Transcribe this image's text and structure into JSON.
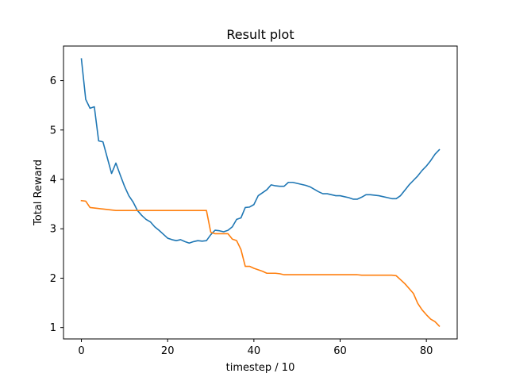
{
  "chart_data": {
    "type": "line",
    "title": "Result plot",
    "xlabel": "timestep / 10",
    "ylabel": "Total Reward",
    "xlim": [
      -4.15,
      87.15
    ],
    "ylim": [
      0.77,
      6.7
    ],
    "x_ticks": [
      0,
      20,
      40,
      60,
      80
    ],
    "y_ticks": [
      1,
      2,
      3,
      4,
      5,
      6
    ],
    "grid": false,
    "series": [
      {
        "color": "#1f77b4",
        "x": [
          0,
          1,
          2,
          3,
          4,
          5,
          6,
          7,
          8,
          9,
          10,
          11,
          12,
          13,
          14,
          15,
          16,
          17,
          18,
          19,
          20,
          21,
          22,
          23,
          24,
          25,
          26,
          27,
          28,
          29,
          30,
          31,
          32,
          33,
          34,
          35,
          36,
          37,
          38,
          39,
          40,
          41,
          42,
          43,
          44,
          45,
          46,
          47,
          48,
          49,
          50,
          51,
          52,
          53,
          54,
          55,
          56,
          57,
          58,
          59,
          60,
          61,
          62,
          63,
          64,
          65,
          66,
          67,
          68,
          69,
          70,
          71,
          72,
          73,
          74,
          75,
          76,
          77,
          78,
          79,
          80,
          81,
          82,
          83
        ],
        "values": [
          6.44,
          5.62,
          5.44,
          5.47,
          4.78,
          4.76,
          4.44,
          4.12,
          4.33,
          4.09,
          3.86,
          3.67,
          3.54,
          3.37,
          3.27,
          3.19,
          3.14,
          3.04,
          2.97,
          2.89,
          2.81,
          2.78,
          2.76,
          2.78,
          2.74,
          2.71,
          2.74,
          2.76,
          2.75,
          2.76,
          2.88,
          2.97,
          2.96,
          2.94,
          2.97,
          3.04,
          3.19,
          3.22,
          3.43,
          3.44,
          3.49,
          3.67,
          3.73,
          3.79,
          3.89,
          3.87,
          3.86,
          3.86,
          3.94,
          3.94,
          3.92,
          3.9,
          3.88,
          3.85,
          3.8,
          3.75,
          3.71,
          3.71,
          3.69,
          3.67,
          3.67,
          3.65,
          3.63,
          3.6,
          3.6,
          3.64,
          3.69,
          3.69,
          3.68,
          3.67,
          3.65,
          3.63,
          3.61,
          3.61,
          3.67,
          3.78,
          3.89,
          3.98,
          4.07,
          4.18,
          4.27,
          4.38,
          4.51,
          4.6
        ]
      },
      {
        "color": "#ff7f0e",
        "x": [
          0,
          1,
          2,
          3,
          4,
          5,
          6,
          7,
          8,
          9,
          10,
          11,
          12,
          13,
          14,
          15,
          16,
          17,
          18,
          19,
          20,
          21,
          22,
          23,
          24,
          25,
          26,
          27,
          28,
          29,
          30,
          31,
          32,
          33,
          34,
          35,
          36,
          37,
          38,
          39,
          40,
          41,
          42,
          43,
          44,
          45,
          46,
          47,
          48,
          49,
          50,
          51,
          52,
          53,
          54,
          55,
          56,
          57,
          58,
          59,
          60,
          61,
          62,
          63,
          64,
          65,
          66,
          67,
          68,
          69,
          70,
          71,
          72,
          73,
          74,
          75,
          76,
          77,
          78,
          79,
          80,
          81,
          82,
          83
        ],
        "values": [
          3.57,
          3.56,
          3.43,
          3.42,
          3.41,
          3.4,
          3.39,
          3.38,
          3.37,
          3.37,
          3.37,
          3.37,
          3.37,
          3.37,
          3.37,
          3.37,
          3.37,
          3.37,
          3.37,
          3.37,
          3.37,
          3.37,
          3.37,
          3.37,
          3.37,
          3.37,
          3.37,
          3.37,
          3.37,
          3.37,
          2.93,
          2.9,
          2.9,
          2.9,
          2.9,
          2.79,
          2.76,
          2.58,
          2.24,
          2.24,
          2.2,
          2.17,
          2.14,
          2.1,
          2.1,
          2.1,
          2.09,
          2.07,
          2.07,
          2.07,
          2.07,
          2.07,
          2.07,
          2.07,
          2.07,
          2.07,
          2.07,
          2.07,
          2.07,
          2.07,
          2.07,
          2.07,
          2.07,
          2.07,
          2.07,
          2.06,
          2.06,
          2.06,
          2.06,
          2.06,
          2.06,
          2.06,
          2.06,
          2.05,
          1.97,
          1.89,
          1.79,
          1.69,
          1.49,
          1.36,
          1.26,
          1.17,
          1.12,
          1.03
        ]
      }
    ]
  }
}
